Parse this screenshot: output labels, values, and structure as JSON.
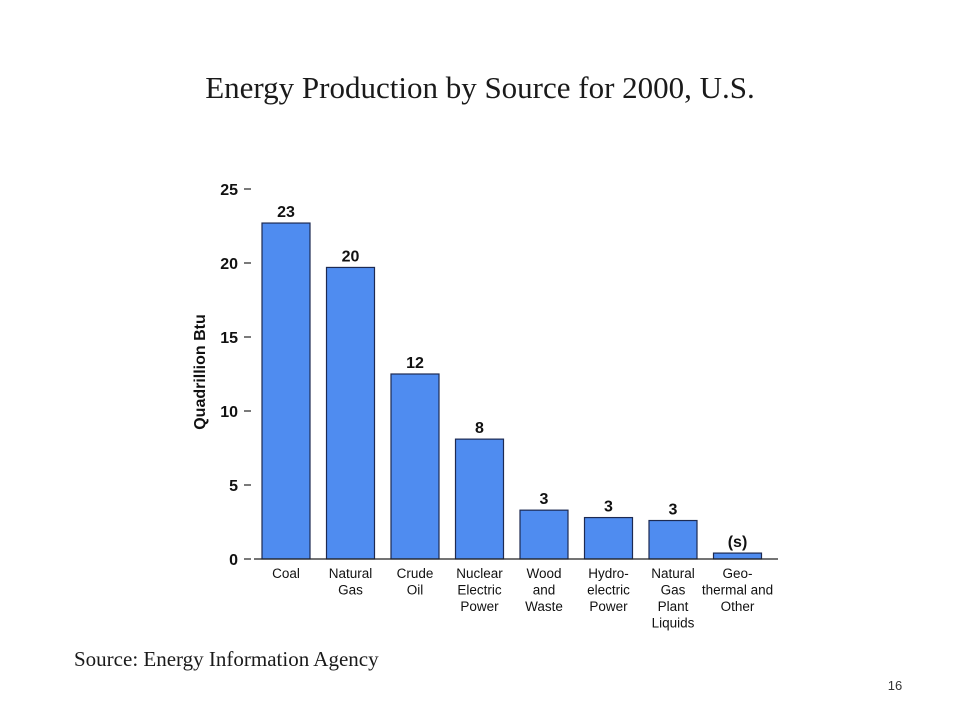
{
  "slide": {
    "title": "Energy Production by Source for 2000, U.S.",
    "source": "Source:  Energy Information Agency",
    "page_number": "16"
  },
  "chart_data": {
    "type": "bar",
    "title": "",
    "xlabel": "",
    "ylabel": "Quadrillion Btu",
    "ylim": [
      0,
      25
    ],
    "yticks": [
      "0",
      "5",
      "10",
      "15",
      "20",
      "25"
    ],
    "grid": false,
    "bar_color": "#4f8cf0",
    "categories": [
      [
        "Coal"
      ],
      [
        "Natural",
        "Gas"
      ],
      [
        "Crude",
        "Oil"
      ],
      [
        "Nuclear",
        "Electric",
        "Power"
      ],
      [
        "Wood",
        "and",
        "Waste"
      ],
      [
        "Hydro-",
        "electric",
        "Power"
      ],
      [
        "Natural",
        "Gas",
        "Plant",
        "Liquids"
      ],
      [
        "Geo-",
        "thermal and",
        "Other"
      ]
    ],
    "values": [
      22.7,
      19.7,
      12.5,
      8.1,
      3.3,
      2.8,
      2.6,
      0.4
    ],
    "data_labels": [
      "23",
      "20",
      "12",
      "8",
      "3",
      "3",
      "3",
      "(s)"
    ]
  }
}
